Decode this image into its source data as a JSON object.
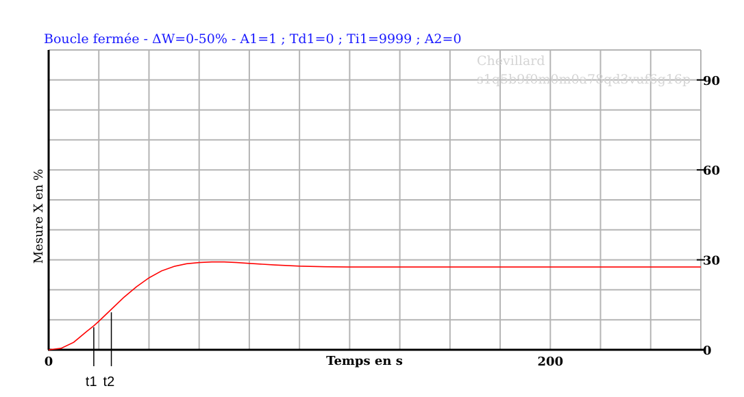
{
  "chart_data": {
    "type": "line",
    "title": "Boucle fermée - ΔW=0-50% - A1=1 ; Td1=0 ; Ti1=9999 ; A2=0",
    "xlabel": "Temps en s",
    "ylabel": "Mesure X en %",
    "xlim": [
      0,
      260
    ],
    "ylim": [
      0,
      100
    ],
    "x_ticks": [
      {
        "value": 0,
        "label": "0"
      },
      {
        "value": 200,
        "label": "200"
      }
    ],
    "y_ticks": [
      {
        "value": 0,
        "label": "0"
      },
      {
        "value": 30,
        "label": "30"
      },
      {
        "value": 60,
        "label": "60"
      },
      {
        "value": 90,
        "label": "90"
      }
    ],
    "grid": true,
    "x_grid_step": 20,
    "y_grid_step": 10,
    "watermark": [
      "Chevillard",
      "s1q5b9f0m0m0a78qd3vuf6g16p"
    ],
    "series": [
      {
        "color": "#ff0000",
        "x": [
          0,
          5,
          10,
          15,
          18,
          20,
          25,
          30,
          35,
          40,
          45,
          50,
          55,
          60,
          65,
          70,
          75,
          80,
          90,
          100,
          110,
          120,
          140,
          160,
          180,
          200,
          220,
          240,
          260
        ],
        "y": [
          0,
          0.5,
          2.5,
          6,
          8,
          9.5,
          13.5,
          17.5,
          21,
          24,
          26.3,
          27.8,
          28.7,
          29.1,
          29.3,
          29.3,
          29.1,
          28.8,
          28.3,
          27.9,
          27.7,
          27.6,
          27.6,
          27.6,
          27.6,
          27.6,
          27.6,
          27.6,
          27.6
        ]
      }
    ],
    "markers": [
      {
        "x": 18,
        "y": 7.5,
        "label": "t1"
      },
      {
        "x": 25,
        "y": 12.5,
        "label": "t2"
      }
    ]
  }
}
